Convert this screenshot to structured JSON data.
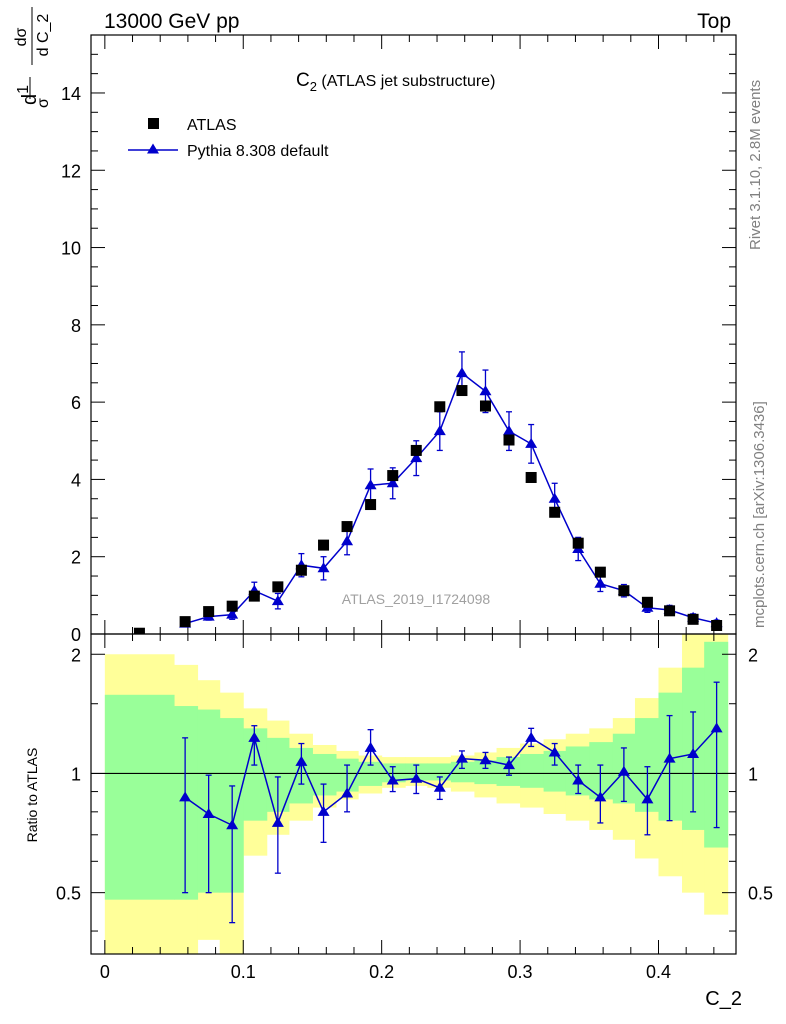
{
  "header": {
    "left": "13000 GeV pp",
    "right": "Top"
  },
  "side_labels": {
    "rivet": "Rivet 3.1.10,  2.8M events",
    "mcplots": "mcplots.cern.ch [arXiv:1306.3436]"
  },
  "chart_data": {
    "type": "scatter",
    "title_main": "C",
    "title_sub": "2",
    "title_rest": " (ATLAS jet substructure)",
    "analysis_label": "ATLAS_2019_I1724098",
    "xlabel": "C_2",
    "ylabel_top": {
      "frac_num": "1",
      "frac_den": "σ",
      "d_num": "dσ",
      "d_den": "d C_2"
    },
    "ylabel_bottom": "Ratio to ATLAS",
    "xlim": [
      -0.01,
      0.456
    ],
    "ylim_top": [
      0,
      15.5
    ],
    "ylim_bottom": [
      0.35,
      2.25
    ],
    "ticks": {
      "x_major": [
        0,
        0.1,
        0.2,
        0.3,
        0.4
      ],
      "x_major_labels": [
        "0",
        "0.1",
        "0.2",
        "0.3",
        "0.4"
      ],
      "y_top_major": [
        0,
        2,
        4,
        6,
        8,
        10,
        12,
        14
      ],
      "y_top_major_labels": [
        "0",
        "2",
        "4",
        "6",
        "8",
        "10",
        "12",
        "14"
      ],
      "y_bottom_major": [
        0.5,
        1,
        2
      ],
      "y_bottom_major_labels": [
        "0.5",
        "1",
        "2"
      ]
    },
    "legend": {
      "placement": "top-left",
      "entries": [
        "ATLAS",
        "Pythia 8.308 default"
      ]
    },
    "colors": {
      "data": "#000000",
      "mc": "#0000cc",
      "band_inner": "#99ff99",
      "band_outer": "#ffff99"
    },
    "series": [
      {
        "name": "ATLAS",
        "x": [
          0.025,
          0.058,
          0.075,
          0.092,
          0.108,
          0.125,
          0.142,
          0.158,
          0.175,
          0.192,
          0.208,
          0.225,
          0.242,
          0.258,
          0.275,
          0.292,
          0.308,
          0.325,
          0.342,
          0.358,
          0.375,
          0.392,
          0.408,
          0.425,
          0.442
        ],
        "y": [
          0.02,
          0.32,
          0.58,
          0.72,
          0.98,
          1.22,
          1.65,
          2.3,
          2.78,
          3.35,
          4.1,
          4.75,
          5.88,
          6.3,
          5.9,
          5.02,
          4.05,
          3.15,
          2.35,
          1.6,
          1.12,
          0.82,
          0.6,
          0.38,
          0.22
        ]
      },
      {
        "name": "Pythia 8.308 default",
        "x": [
          0.058,
          0.075,
          0.092,
          0.108,
          0.125,
          0.142,
          0.158,
          0.175,
          0.192,
          0.208,
          0.225,
          0.242,
          0.258,
          0.275,
          0.292,
          0.308,
          0.325,
          0.342,
          0.358,
          0.375,
          0.392,
          0.408,
          0.425,
          0.442
        ],
        "y": [
          0.27,
          0.45,
          0.5,
          1.12,
          0.85,
          1.78,
          1.7,
          2.4,
          3.85,
          3.9,
          4.55,
          5.25,
          6.75,
          6.28,
          5.25,
          4.92,
          3.5,
          2.2,
          1.3,
          1.12,
          0.68,
          0.62,
          0.42,
          0.28
        ],
        "yerr": [
          0.08,
          0.09,
          0.12,
          0.22,
          0.2,
          0.3,
          0.3,
          0.35,
          0.42,
          0.4,
          0.45,
          0.5,
          0.55,
          0.55,
          0.5,
          0.5,
          0.4,
          0.3,
          0.2,
          0.16,
          0.12,
          0.12,
          0.1,
          0.08
        ]
      }
    ],
    "ratio": {
      "x": [
        0.058,
        0.075,
        0.092,
        0.108,
        0.125,
        0.142,
        0.158,
        0.175,
        0.192,
        0.208,
        0.225,
        0.242,
        0.258,
        0.275,
        0.292,
        0.308,
        0.325,
        0.342,
        0.358,
        0.375,
        0.392,
        0.408,
        0.425,
        0.442
      ],
      "y": [
        0.87,
        0.79,
        0.74,
        1.23,
        0.75,
        1.07,
        0.8,
        0.89,
        1.16,
        0.96,
        0.97,
        0.92,
        1.09,
        1.08,
        1.05,
        1.23,
        1.13,
        0.96,
        0.87,
        1.01,
        0.86,
        1.09,
        1.12,
        1.3
      ],
      "ylo": [
        0.5,
        0.5,
        0.42,
        1.05,
        0.56,
        0.94,
        0.67,
        0.8,
        1.05,
        0.9,
        0.89,
        0.86,
        1.03,
        1.03,
        0.99,
        1.17,
        1.05,
        0.89,
        0.75,
        0.85,
        0.7,
        0.76,
        0.8,
        0.73
      ],
      "yhi": [
        1.23,
        0.99,
        0.93,
        1.32,
        0.98,
        1.19,
        0.94,
        1.05,
        1.29,
        1.04,
        1.05,
        0.98,
        1.14,
        1.13,
        1.1,
        1.3,
        1.19,
        1.05,
        1.05,
        1.16,
        1.04,
        1.4,
        1.43,
        1.7
      ],
      "band_edges": [
        0,
        0.05,
        0.067,
        0.083,
        0.1,
        0.117,
        0.133,
        0.15,
        0.167,
        0.183,
        0.2,
        0.217,
        0.233,
        0.25,
        0.267,
        0.283,
        0.3,
        0.317,
        0.333,
        0.35,
        0.367,
        0.383,
        0.4,
        0.417,
        0.433,
        0.45
      ],
      "inner_lo": [
        0.48,
        0.48,
        0.5,
        0.5,
        0.76,
        0.8,
        0.84,
        0.88,
        0.9,
        0.93,
        0.95,
        0.96,
        0.96,
        0.95,
        0.94,
        0.93,
        0.92,
        0.9,
        0.88,
        0.86,
        0.84,
        0.8,
        0.76,
        0.72,
        0.65
      ],
      "inner_hi": [
        1.58,
        1.48,
        1.45,
        1.38,
        1.3,
        1.23,
        1.16,
        1.12,
        1.09,
        1.07,
        1.06,
        1.06,
        1.06,
        1.07,
        1.08,
        1.1,
        1.12,
        1.14,
        1.17,
        1.2,
        1.26,
        1.38,
        1.6,
        1.85,
        2.15
      ],
      "outer_lo": [
        0.35,
        0.35,
        0.38,
        0.35,
        0.62,
        0.7,
        0.76,
        0.82,
        0.86,
        0.89,
        0.92,
        0.93,
        0.92,
        0.9,
        0.87,
        0.84,
        0.82,
        0.79,
        0.76,
        0.72,
        0.68,
        0.61,
        0.55,
        0.5,
        0.44
      ],
      "outer_hi": [
        2.0,
        1.88,
        1.72,
        1.6,
        1.46,
        1.36,
        1.26,
        1.18,
        1.14,
        1.11,
        1.1,
        1.1,
        1.1,
        1.11,
        1.13,
        1.16,
        1.19,
        1.22,
        1.26,
        1.3,
        1.38,
        1.55,
        1.85,
        2.25,
        2.25
      ]
    }
  }
}
